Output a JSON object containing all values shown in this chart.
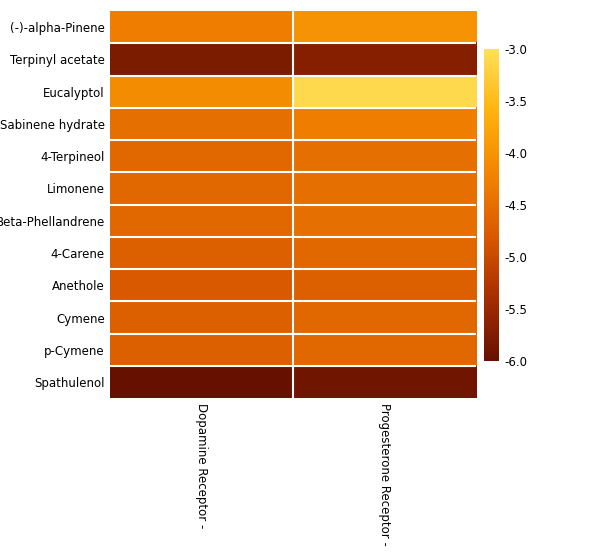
{
  "rows": [
    "(-)-alpha-Pinene",
    "Terpinyl acetate",
    "Eucalyptol",
    "Sabinene hydrate",
    "4-Terpineol",
    "Limonene",
    "Beta-Phellandrene",
    "4-Carene",
    "Anethole",
    "Cymene",
    "p-Cymene",
    "Spathulenol"
  ],
  "cols": [
    "Dopamine Receptor -",
    "Progesterone Receptor -"
  ],
  "values": [
    [
      -4.3,
      -4.0
    ],
    [
      -5.8,
      -5.7
    ],
    [
      -4.1,
      -3.1
    ],
    [
      -4.5,
      -4.3
    ],
    [
      -4.6,
      -4.5
    ],
    [
      -4.6,
      -4.5
    ],
    [
      -4.6,
      -4.5
    ],
    [
      -4.7,
      -4.6
    ],
    [
      -4.8,
      -4.7
    ],
    [
      -4.7,
      -4.6
    ],
    [
      -4.7,
      -4.6
    ],
    [
      -6.0,
      -5.9
    ]
  ],
  "vmin": -6.0,
  "vmax": -3.0,
  "cbar_ticks": [
    -3.0,
    -3.5,
    -4.0,
    -4.5,
    -5.0,
    -5.5,
    -6.0
  ],
  "cbar_tick_labels": [
    "-3.0",
    "-3.5",
    "-4.0",
    "-4.5",
    "-5.0",
    "-5.5",
    "-6.0"
  ],
  "linewidth": 1.5,
  "linecolor": "white",
  "figsize": [
    6.09,
    5.53
  ],
  "dpi": 100,
  "tick_fontsize": 8.5,
  "cbar_fontsize": 8.5
}
